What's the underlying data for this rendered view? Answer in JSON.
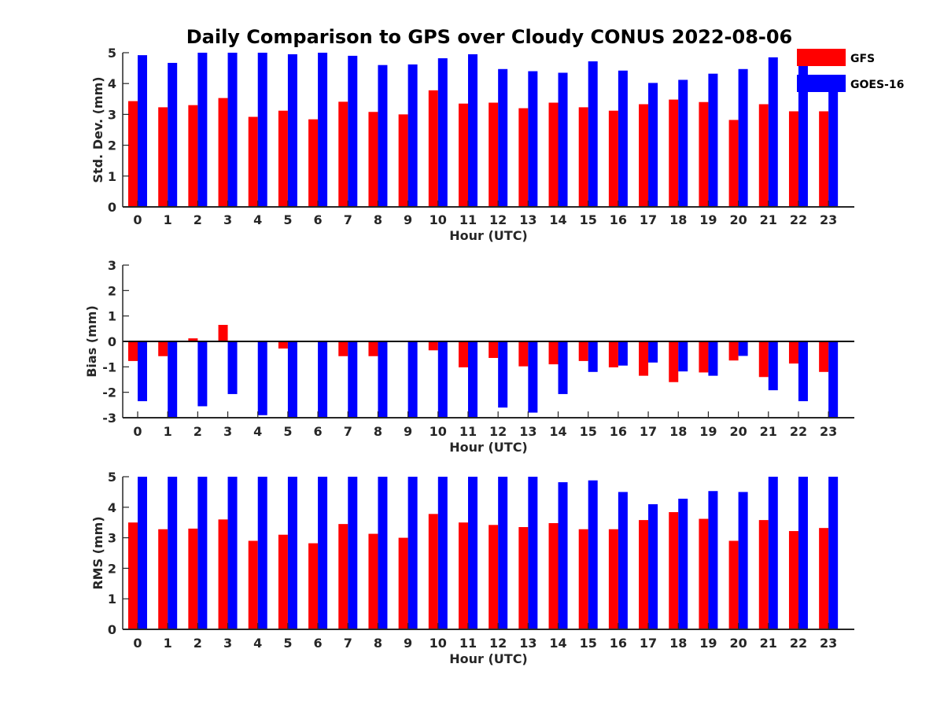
{
  "figure": {
    "title": "Daily Comparison to GPS over Cloudy CONUS 2022-08-06"
  },
  "legend": {
    "placement": "top-right",
    "items": [
      {
        "name": "GFS",
        "color": "#ff0000"
      },
      {
        "name": "GOES-16",
        "color": "#0000ff"
      }
    ]
  },
  "chart_data": [
    {
      "type": "bar",
      "title": "Daily Comparison to GPS over Cloudy CONUS 2022-08-06",
      "xlabel": "Hour (UTC)",
      "ylabel": "Std. Dev. (mm)",
      "ylim": [
        0,
        5
      ],
      "yticks": [
        0,
        1,
        2,
        3,
        4,
        5
      ],
      "categories": [
        0,
        1,
        2,
        3,
        4,
        5,
        6,
        7,
        8,
        9,
        10,
        11,
        12,
        13,
        14,
        15,
        16,
        17,
        18,
        19,
        20,
        21,
        22,
        23
      ],
      "grid": false,
      "series": [
        {
          "name": "GFS",
          "color": "#ff0000",
          "values": [
            3.43,
            3.23,
            3.3,
            3.53,
            2.92,
            3.12,
            2.84,
            3.41,
            3.08,
            3.0,
            3.78,
            3.35,
            3.38,
            3.2,
            3.38,
            3.23,
            3.12,
            3.33,
            3.48,
            3.4,
            2.82,
            3.33,
            3.1,
            3.1
          ]
        },
        {
          "name": "GOES-16",
          "color": "#0000ff",
          "values": [
            4.92,
            4.67,
            5.0,
            5.0,
            5.0,
            4.95,
            5.0,
            4.9,
            4.6,
            4.62,
            4.82,
            4.95,
            4.47,
            4.4,
            4.35,
            4.72,
            4.42,
            4.02,
            4.12,
            4.32,
            4.47,
            4.85,
            4.82,
            3.8
          ]
        }
      ]
    },
    {
      "type": "bar",
      "xlabel": "Hour (UTC)",
      "ylabel": "Bias (mm)",
      "ylim": [
        -3,
        3
      ],
      "yticks": [
        -3,
        -2,
        -1,
        0,
        1,
        2,
        3
      ],
      "categories": [
        0,
        1,
        2,
        3,
        4,
        5,
        6,
        7,
        8,
        9,
        10,
        11,
        12,
        13,
        14,
        15,
        16,
        17,
        18,
        19,
        20,
        21,
        22,
        23
      ],
      "grid": false,
      "zero_line": true,
      "series": [
        {
          "name": "GFS",
          "color": "#ff0000",
          "values": [
            -0.77,
            -0.58,
            0.12,
            0.65,
            0.02,
            -0.28,
            0.0,
            -0.58,
            -0.58,
            -0.03,
            -0.35,
            -1.02,
            -0.65,
            -0.98,
            -0.9,
            -0.77,
            -1.02,
            -1.35,
            -1.6,
            -1.22,
            -0.75,
            -1.4,
            -0.87,
            -1.2
          ]
        },
        {
          "name": "GOES-16",
          "color": "#0000ff",
          "values": [
            -2.35,
            -3.0,
            -2.55,
            -2.07,
            -2.9,
            -3.0,
            -3.0,
            -3.0,
            -3.0,
            -3.0,
            -3.0,
            -3.0,
            -2.6,
            -2.8,
            -2.07,
            -1.2,
            -0.95,
            -0.83,
            -1.18,
            -1.35,
            -0.57,
            -1.92,
            -2.35,
            -3.0
          ]
        }
      ]
    },
    {
      "type": "bar",
      "xlabel": "Hour (UTC)",
      "ylabel": "RMS (mm)",
      "ylim": [
        0,
        5
      ],
      "yticks": [
        0,
        1,
        2,
        3,
        4,
        5
      ],
      "categories": [
        0,
        1,
        2,
        3,
        4,
        5,
        6,
        7,
        8,
        9,
        10,
        11,
        12,
        13,
        14,
        15,
        16,
        17,
        18,
        19,
        20,
        21,
        22,
        23
      ],
      "grid": false,
      "series": [
        {
          "name": "GFS",
          "color": "#ff0000",
          "values": [
            3.5,
            3.28,
            3.3,
            3.6,
            2.9,
            3.1,
            2.82,
            3.45,
            3.13,
            3.0,
            3.78,
            3.5,
            3.42,
            3.35,
            3.48,
            3.28,
            3.28,
            3.58,
            3.84,
            3.62,
            2.9,
            3.58,
            3.22,
            3.32
          ]
        },
        {
          "name": "GOES-16",
          "color": "#0000ff",
          "values": [
            5.0,
            5.0,
            5.0,
            5.0,
            5.0,
            5.0,
            5.0,
            5.0,
            5.0,
            5.0,
            5.0,
            5.0,
            5.0,
            5.0,
            4.82,
            4.88,
            4.5,
            4.1,
            4.28,
            4.53,
            4.5,
            5.0,
            5.0,
            5.0
          ]
        }
      ]
    }
  ]
}
